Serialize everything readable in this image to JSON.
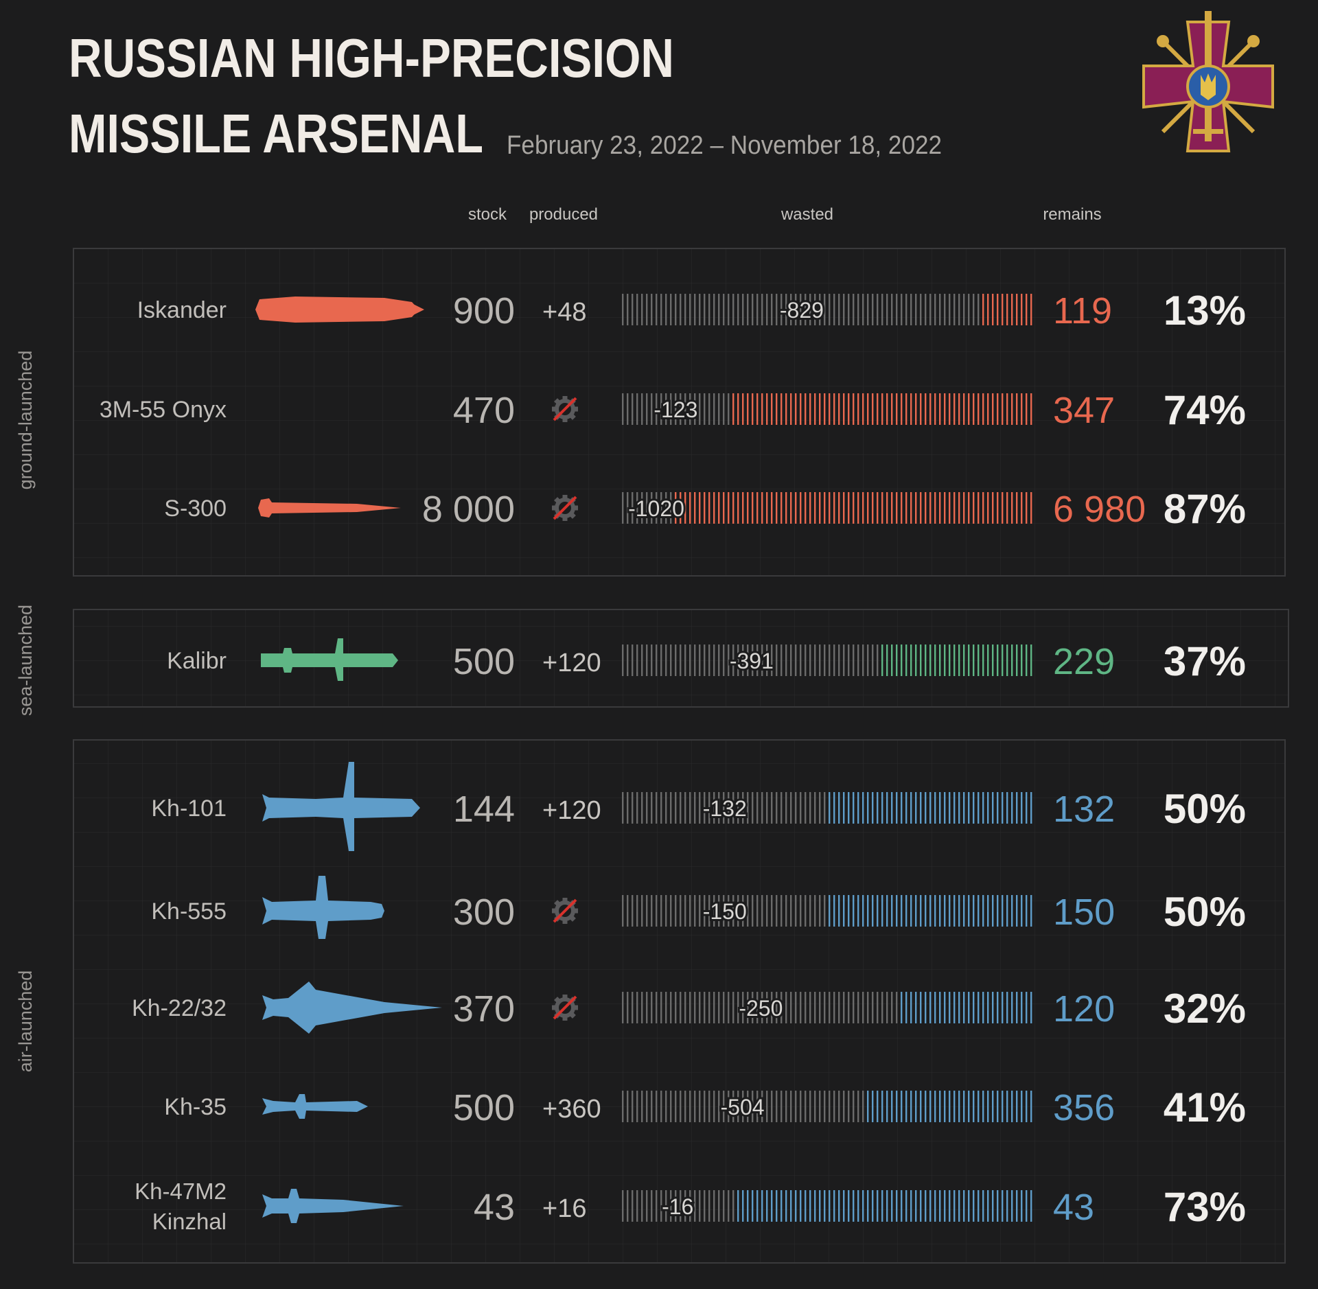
{
  "title_line1": "RUSSIAN HIGH-PRECISION",
  "title_line2": "MISSILE ARSENAL",
  "date_range": "February 23, 2022 – November 18, 2022",
  "column_headers": {
    "stock": "stock",
    "produced": "produced",
    "wasted": "wasted",
    "remains": "remains"
  },
  "colors": {
    "background": "#1c1c1d",
    "ground": "#e8684f",
    "sea": "#5fb685",
    "air": "#5f9dc9",
    "wasted": "#6b6b6b",
    "percent": "#f1efec",
    "emblem_cross": "#8a1f55",
    "emblem_gold": "#d4a942"
  },
  "icons": {
    "emblem": "armed-forces-cross-emblem",
    "not_produced": "crossed-gear-icon"
  },
  "chart_data": {
    "type": "bar",
    "groups": [
      {
        "label": "ground-launched",
        "color_key": "ground",
        "rows": [
          {
            "name": "Iskander",
            "stock": "900",
            "produced": "+48",
            "produced_flag": true,
            "wasted": -829,
            "wasted_label": "-829",
            "remains": 119,
            "remains_label": "119",
            "percent": "13%",
            "shape": "iskander"
          },
          {
            "name": "3M-55 Onyx",
            "stock": "470",
            "produced": "",
            "produced_flag": false,
            "wasted": -123,
            "wasted_label": "-123",
            "remains": 347,
            "remains_label": "347",
            "percent": "74%",
            "shape": "onyx"
          },
          {
            "name": "S-300",
            "stock": "8 000",
            "produced": "",
            "produced_flag": false,
            "wasted": -1020,
            "wasted_label": "-1020",
            "remains": 6980,
            "remains_label": "6 980",
            "percent": "87%",
            "shape": "s300"
          }
        ]
      },
      {
        "label": "sea-launched",
        "color_key": "sea",
        "rows": [
          {
            "name": "Kalibr",
            "stock": "500",
            "produced": "+120",
            "produced_flag": true,
            "wasted": -391,
            "wasted_label": "-391",
            "remains": 229,
            "remains_label": "229",
            "percent": "37%",
            "shape": "kalibr"
          }
        ]
      },
      {
        "label": "air-launched",
        "color_key": "air",
        "rows": [
          {
            "name": "Kh-101",
            "stock": "144",
            "produced": "+120",
            "produced_flag": true,
            "wasted": -132,
            "wasted_label": "-132",
            "remains": 132,
            "remains_label": "132",
            "percent": "50%",
            "shape": "kh101"
          },
          {
            "name": "Kh-555",
            "stock": "300",
            "produced": "",
            "produced_flag": false,
            "wasted": -150,
            "wasted_label": "-150",
            "remains": 150,
            "remains_label": "150",
            "percent": "50%",
            "shape": "kh555"
          },
          {
            "name": "Kh-22/32",
            "stock": "370",
            "produced": "",
            "produced_flag": false,
            "wasted": -250,
            "wasted_label": "-250",
            "remains": 120,
            "remains_label": "120",
            "percent": "32%",
            "shape": "kh22"
          },
          {
            "name": "Kh-35",
            "stock": "500",
            "produced": "+360",
            "produced_flag": true,
            "wasted": -504,
            "wasted_label": "-504",
            "remains": 356,
            "remains_label": "356",
            "percent": "41%",
            "shape": "kh35"
          },
          {
            "name": "Kh-47M2\nKinzhal",
            "stock": "43",
            "produced": "+16",
            "produced_flag": true,
            "wasted": -16,
            "wasted_label": "-16",
            "remains": 43,
            "remains_label": "43",
            "percent": "73%",
            "shape": "kinzhal"
          }
        ]
      }
    ]
  }
}
